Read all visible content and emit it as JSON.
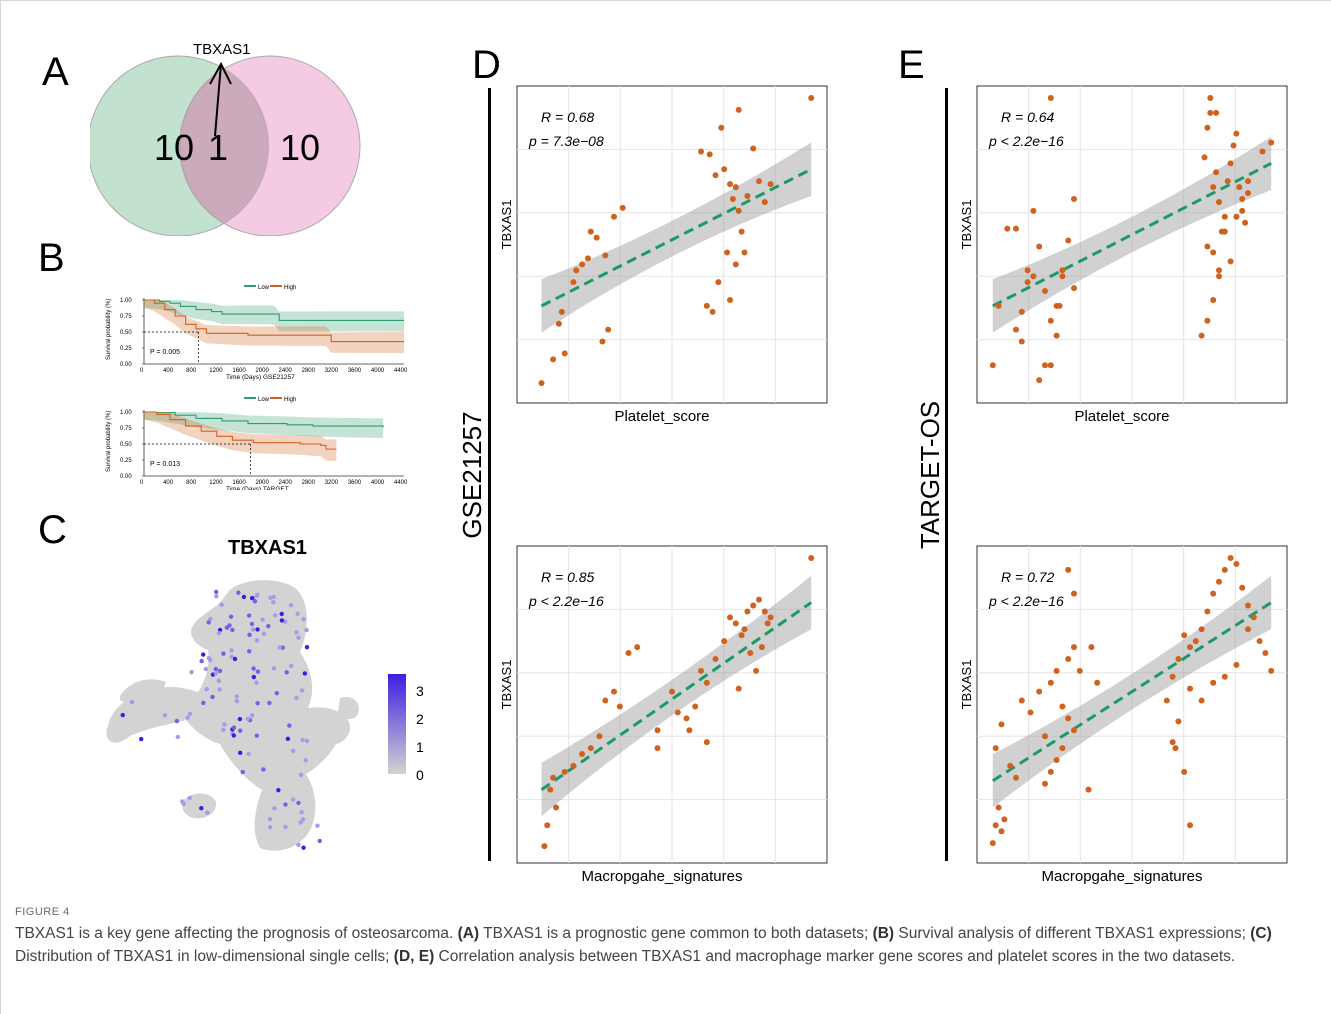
{
  "panels": {
    "a": "A",
    "b": "B",
    "c": "C",
    "d": "D",
    "e": "E"
  },
  "venn": {
    "gene_label": "TBXAS1",
    "left_count": "10",
    "overlap_count": "1",
    "right_count": "10",
    "left_color": "#b7dcc6",
    "right_color": "#f2b9d9"
  },
  "survival": {
    "legend_low": "Low",
    "legend_high": "High",
    "y_label": "Survival probability (%)",
    "y_ticks": [
      "1.00",
      "0.75",
      "0.50",
      "0.25",
      "0.00"
    ],
    "x_ticks": [
      "0",
      "400",
      "800",
      "1200",
      "1600",
      "2000",
      "2400",
      "2800",
      "3200",
      "3600",
      "4000",
      "4400"
    ],
    "plots": [
      {
        "x_label": "Time (Days) GSE21257",
        "p_value": "P = 0.005"
      },
      {
        "x_label": "Time (Days) TARGET",
        "p_value": "P = 0.013"
      }
    ],
    "low_color": "#2e9e6e",
    "high_color": "#d0611e"
  },
  "umap": {
    "title": "TBXAS1",
    "colorbar_ticks": [
      "3",
      "2",
      "1",
      "0"
    ],
    "high_color": "#3d1ee0",
    "low_color": "#d3d3d3"
  },
  "datasets": {
    "d": "GSE21257",
    "e": "TARGET-OS"
  },
  "scatter_y_label": "TBXAS1",
  "chart_data": [
    {
      "type": "scatter",
      "panel": "D-top",
      "xlabel": "Platelet_score",
      "ylabel": "TBXAS1",
      "r_label": "R = 0.68",
      "p_label": "p = 7.3e−08",
      "xlim": [
        0,
        1
      ],
      "ylim": [
        0,
        1
      ],
      "fit": [
        [
          0.05,
          0.3
        ],
        [
          0.98,
          0.76
        ]
      ],
      "x": [
        0.05,
        0.09,
        0.13,
        0.11,
        0.12,
        0.16,
        0.17,
        0.19,
        0.21,
        0.22,
        0.24,
        0.27,
        0.3,
        0.33,
        0.26,
        0.28,
        0.6,
        0.63,
        0.65,
        0.67,
        0.68,
        0.7,
        0.71,
        0.72,
        0.73,
        0.74,
        0.75,
        0.76,
        0.78,
        0.8,
        0.82,
        0.84,
        0.72,
        0.69,
        0.66,
        0.7,
        0.64,
        0.62,
        0.73,
        0.98
      ],
      "y": [
        0.04,
        0.12,
        0.14,
        0.24,
        0.28,
        0.38,
        0.42,
        0.44,
        0.46,
        0.55,
        0.53,
        0.47,
        0.6,
        0.63,
        0.18,
        0.22,
        0.82,
        0.81,
        0.74,
        0.9,
        0.76,
        0.71,
        0.66,
        0.7,
        0.62,
        0.55,
        0.48,
        0.67,
        0.83,
        0.72,
        0.65,
        0.71,
        0.44,
        0.48,
        0.38,
        0.32,
        0.28,
        0.3,
        0.96,
        1.0
      ]
    },
    {
      "type": "scatter",
      "panel": "D-bottom",
      "xlabel": "Macropgahe_signatures",
      "ylabel": "TBXAS1",
      "r_label": "R = 0.85",
      "p_label": "p < 2.2e−16",
      "xlim": [
        0,
        1
      ],
      "ylim": [
        0,
        1
      ],
      "fit": [
        [
          0.05,
          0.22
        ],
        [
          0.98,
          0.85
        ]
      ],
      "x": [
        0.06,
        0.07,
        0.08,
        0.09,
        0.1,
        0.13,
        0.16,
        0.19,
        0.22,
        0.25,
        0.27,
        0.3,
        0.32,
        0.35,
        0.38,
        0.45,
        0.5,
        0.55,
        0.58,
        0.6,
        0.62,
        0.65,
        0.68,
        0.7,
        0.72,
        0.74,
        0.76,
        0.78,
        0.8,
        0.82,
        0.84,
        0.83,
        0.81,
        0.79,
        0.77,
        0.75,
        0.73,
        0.62,
        0.56,
        0.52,
        0.45,
        0.98
      ],
      "y": [
        0.03,
        0.1,
        0.22,
        0.26,
        0.16,
        0.28,
        0.3,
        0.34,
        0.36,
        0.4,
        0.52,
        0.55,
        0.5,
        0.68,
        0.7,
        0.42,
        0.55,
        0.46,
        0.5,
        0.62,
        0.58,
        0.66,
        0.72,
        0.8,
        0.78,
        0.74,
        0.82,
        0.84,
        0.86,
        0.82,
        0.8,
        0.78,
        0.7,
        0.62,
        0.68,
        0.76,
        0.56,
        0.38,
        0.42,
        0.48,
        0.36,
        1.0
      ]
    },
    {
      "type": "scatter",
      "panel": "E-top",
      "xlabel": "Platelet_score",
      "ylabel": "TBXAS1",
      "r_label": "R = 0.64",
      "p_label": "p < 2.2e−16",
      "xlim": [
        0,
        1
      ],
      "ylim": [
        0,
        1
      ],
      "fit": [
        [
          0.02,
          0.3
        ],
        [
          0.98,
          0.78
        ]
      ],
      "x": [
        0.02,
        0.04,
        0.07,
        0.1,
        0.12,
        0.14,
        0.16,
        0.18,
        0.2,
        0.22,
        0.24,
        0.26,
        0.18,
        0.2,
        0.22,
        0.24,
        0.26,
        0.28,
        0.3,
        0.16,
        0.14,
        0.12,
        0.1,
        0.3,
        0.25,
        0.22,
        0.75,
        0.76,
        0.77,
        0.78,
        0.79,
        0.8,
        0.81,
        0.82,
        0.83,
        0.84,
        0.85,
        0.86,
        0.87,
        0.88,
        0.89,
        0.9,
        0.76,
        0.78,
        0.8,
        0.82,
        0.84,
        0.86,
        0.88,
        0.9,
        0.74,
        0.76,
        0.78,
        0.8,
        0.79,
        0.77,
        0.95,
        0.98
      ],
      "y": [
        0.1,
        0.3,
        0.56,
        0.56,
        0.18,
        0.38,
        0.4,
        0.05,
        0.1,
        0.25,
        0.3,
        0.4,
        0.5,
        0.35,
        0.1,
        0.2,
        0.42,
        0.52,
        0.66,
        0.62,
        0.42,
        0.28,
        0.22,
        0.36,
        0.3,
        1.0,
        0.8,
        0.9,
        0.95,
        0.7,
        0.75,
        0.65,
        0.55,
        0.6,
        0.72,
        0.78,
        0.84,
        0.88,
        0.7,
        0.62,
        0.58,
        0.68,
        0.5,
        0.48,
        0.42,
        0.55,
        0.45,
        0.6,
        0.66,
        0.72,
        0.2,
        0.25,
        0.32,
        0.4,
        0.95,
        1.0,
        0.82,
        0.85
      ],
      "x_note": "",
      "y_note": ""
    },
    {
      "type": "scatter",
      "panel": "E-bottom",
      "xlabel": "Macropgahe_signatures",
      "ylabel": "TBXAS1",
      "r_label": "R = 0.72",
      "p_label": "p < 2.2e−16",
      "xlim": [
        0,
        1
      ],
      "ylim": [
        0,
        1
      ],
      "fit": [
        [
          0.02,
          0.25
        ],
        [
          0.98,
          0.85
        ]
      ],
      "x": [
        0.02,
        0.03,
        0.04,
        0.05,
        0.06,
        0.03,
        0.05,
        0.08,
        0.1,
        0.12,
        0.15,
        0.18,
        0.2,
        0.22,
        0.24,
        0.26,
        0.28,
        0.3,
        0.2,
        0.22,
        0.24,
        0.26,
        0.28,
        0.3,
        0.32,
        0.35,
        0.38,
        0.28,
        0.3,
        0.36,
        0.62,
        0.64,
        0.66,
        0.68,
        0.7,
        0.72,
        0.74,
        0.76,
        0.78,
        0.8,
        0.82,
        0.84,
        0.86,
        0.88,
        0.9,
        0.92,
        0.94,
        0.96,
        0.98,
        0.66,
        0.64,
        0.7,
        0.74,
        0.78,
        0.82,
        0.86,
        0.9,
        0.7,
        0.68,
        0.65
      ],
      "y": [
        0.04,
        0.1,
        0.16,
        0.08,
        0.12,
        0.36,
        0.44,
        0.3,
        0.26,
        0.52,
        0.48,
        0.55,
        0.4,
        0.58,
        0.62,
        0.5,
        0.46,
        0.42,
        0.24,
        0.28,
        0.32,
        0.36,
        0.66,
        0.7,
        0.62,
        0.22,
        0.58,
        0.96,
        0.88,
        0.7,
        0.52,
        0.6,
        0.66,
        0.74,
        0.7,
        0.72,
        0.76,
        0.82,
        0.88,
        0.92,
        0.96,
        1.0,
        0.98,
        0.9,
        0.84,
        0.8,
        0.72,
        0.68,
        0.62,
        0.45,
        0.38,
        0.56,
        0.52,
        0.58,
        0.6,
        0.64,
        0.76,
        0.1,
        0.28,
        0.36
      ]
    }
  ]
}
